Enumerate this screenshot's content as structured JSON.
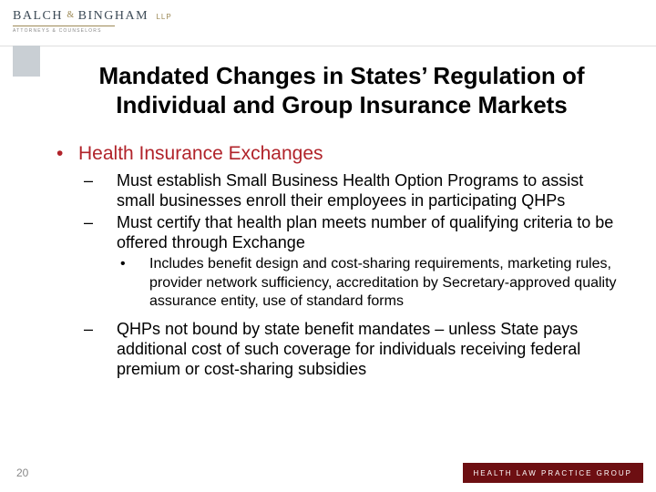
{
  "brand": {
    "name_main": "BALCH",
    "name_amp": "&",
    "name_second": "BINGHAM",
    "name_suffix": "LLP",
    "tagline": "ATTORNEYS & COUNSELORS"
  },
  "colors": {
    "accent_red": "#b1232a",
    "footer_dark": "#6d0f12",
    "accent_gold": "#9d8a57",
    "block_gray": "#c9cfd4",
    "text": "#000000",
    "muted": "#888888",
    "background": "#ffffff",
    "rule": "#dedede"
  },
  "title": "Mandated Changes in States’ Regulation of Individual and Group Insurance Markets",
  "content": {
    "l1_bullet": "•",
    "l1_text": "Health Insurance Exchanges",
    "l2a_dash": "–",
    "l2a_text": "Must establish Small Business Health Option Programs to assist small businesses enroll their employees in participating QHPs",
    "l2b_dash": "–",
    "l2b_text": "Must certify that health plan meets number of qualifying criteria to be offered through Exchange",
    "l3a_dot": "•",
    "l3a_text": "Includes benefit design and cost-sharing requirements, marketing rules, provider network sufficiency, accreditation by Secretary-approved quality assurance entity, use of standard forms",
    "l2c_dash": "–",
    "l2c_text": "QHPs not bound by state benefit mandates – unless State pays additional cost of such coverage for individuals receiving federal premium or cost-sharing subsidies"
  },
  "page_number": "20",
  "footer_text": "HEALTH LAW PRACTICE GROUP",
  "fonts": {
    "title_size_pt": 26,
    "l1_size_pt": 21,
    "l2_size_pt": 18,
    "l3_size_pt": 16,
    "page_num_size_pt": 12,
    "footer_size_pt": 8,
    "logo_main_size_pt": 14
  }
}
